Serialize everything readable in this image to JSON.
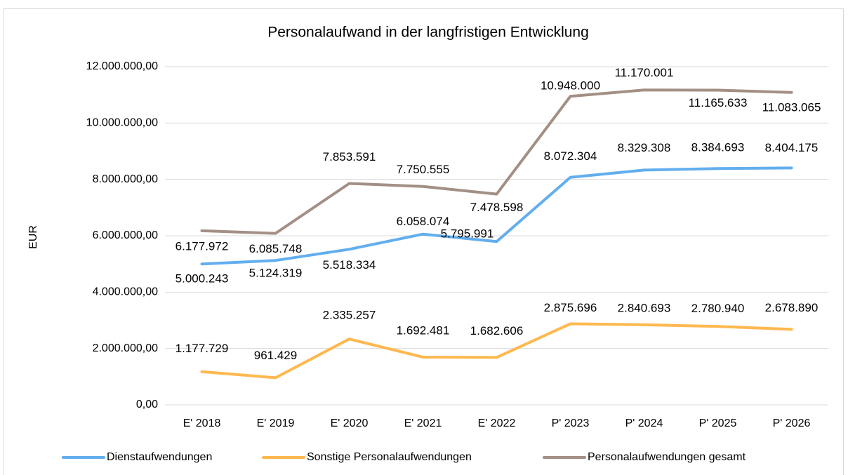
{
  "chart_data": {
    "type": "line",
    "title": "Personalaufwand in der langfristigen Entwicklung",
    "ylabel": "EUR",
    "categories": [
      "E' 2018",
      "E' 2019",
      "E' 2020",
      "E' 2021",
      "E' 2022",
      "P' 2023",
      "P' 2024",
      "P' 2025",
      "P' 2026"
    ],
    "ylim": [
      0,
      12000000
    ],
    "yticks": [
      {
        "value": 0,
        "label": "0,00"
      },
      {
        "value": 2000000,
        "label": "2.000.000,00"
      },
      {
        "value": 4000000,
        "label": "4.000.000,00"
      },
      {
        "value": 6000000,
        "label": "6.000.000,00"
      },
      {
        "value": 8000000,
        "label": "8.000.000,00"
      },
      {
        "value": 10000000,
        "label": "10.000.000,00"
      },
      {
        "value": 12000000,
        "label": "12.000.000,00"
      }
    ],
    "grid": true,
    "legend": "bottom",
    "series": [
      {
        "name": "Dienstaufwendungen",
        "color": "#62aeee",
        "values": [
          5000243,
          5124319,
          5518334,
          6058074,
          5795991,
          8072304,
          8329308,
          8384693,
          8404175
        ],
        "value_labels": [
          "5.000.243",
          "5.124.319",
          "5.518.334",
          "6.058.074",
          "5.795.991",
          "8.072.304",
          "8.329.308",
          "8.384.693",
          "8.404.175"
        ]
      },
      {
        "name": "Sonstige Personalaufwendungen",
        "color": "#ffb84f",
        "values": [
          1177729,
          961429,
          2335257,
          1692481,
          1682606,
          2875696,
          2840693,
          2780940,
          2678890
        ],
        "value_labels": [
          "1.177.729",
          "961.429",
          "2.335.257",
          "1.692.481",
          "1.682.606",
          "2.875.696",
          "2.840.693",
          "2.780.940",
          "2.678.890"
        ]
      },
      {
        "name": "Personalaufwendungen gesamt",
        "color": "#a38f85",
        "values": [
          6177972,
          6085748,
          7853591,
          7750555,
          7478598,
          10948000,
          11170001,
          11165633,
          11083065
        ],
        "value_labels": [
          "6.177.972",
          "6.085.748",
          "7.853.591",
          "7.750.555",
          "7.478.598",
          "10.948.000",
          "11.170.001",
          "11.165.633",
          "11.083.065"
        ]
      }
    ]
  }
}
